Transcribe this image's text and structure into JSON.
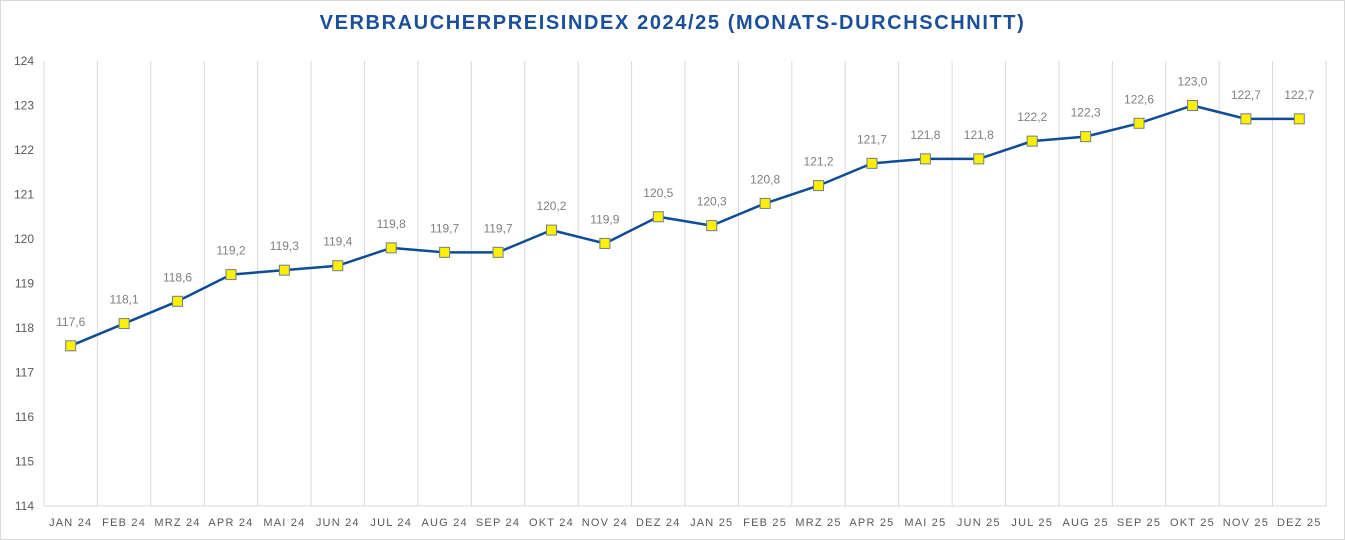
{
  "chart_data": {
    "type": "line",
    "title": "VERBRAUCHERPREISINDEX 2024/25 (MONATS-DURCHSCHNITT)",
    "xlabel": "",
    "ylabel": "",
    "categories": [
      "JAN 24",
      "FEB 24",
      "MRZ 24",
      "APR 24",
      "MAI 24",
      "JUN 24",
      "JUL 24",
      "AUG 24",
      "SEP 24",
      "OKT 24",
      "NOV 24",
      "DEZ 24",
      "JAN 25",
      "FEB 25",
      "MRZ 25",
      "APR 25",
      "MAI 25",
      "JUN 25",
      "JUL 25",
      "AUG 25",
      "SEP 25",
      "OKT 25",
      "NOV 25",
      "DEZ 25"
    ],
    "values": [
      117.6,
      118.1,
      118.6,
      119.2,
      119.3,
      119.4,
      119.8,
      119.7,
      119.7,
      120.2,
      119.9,
      120.5,
      120.3,
      120.8,
      121.2,
      121.7,
      121.8,
      121.8,
      122.2,
      122.3,
      122.6,
      123.0,
      122.7,
      122.7
    ],
    "data_labels": [
      "117,6",
      "118,1",
      "118,6",
      "119,2",
      "119,3",
      "119,4",
      "119,8",
      "119,7",
      "119,7",
      "120,2",
      "119,9",
      "120,5",
      "120,3",
      "120,8",
      "121,2",
      "121,7",
      "121,8",
      "121,8",
      "122,2",
      "122,3",
      "122,6",
      "123,0",
      "122,7",
      "122,7"
    ],
    "yticks": [
      "114",
      "115",
      "116",
      "117",
      "118",
      "119",
      "120",
      "121",
      "122",
      "123",
      "124"
    ],
    "ylim": [
      114,
      124
    ],
    "grid": "vertical",
    "legend": "none",
    "colors": {
      "line": "#0f4c97",
      "marker_fill": "#ffef00",
      "marker_border": "#6f7f8f",
      "title": "#1a4f9c"
    }
  }
}
